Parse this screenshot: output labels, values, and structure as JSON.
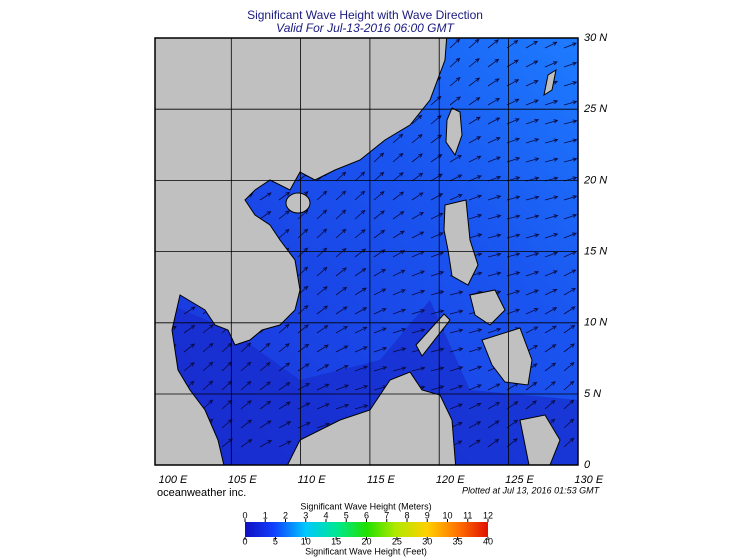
{
  "title": "Significant Wave Height with Wave Direction",
  "subtitle": "Valid For Jul-13-2016 06:00 GMT",
  "map": {
    "lon_labels": [
      "100 E",
      "105 E",
      "110 E",
      "115 E",
      "120 E",
      "125 E",
      "130 E"
    ],
    "lat_labels": [
      "30 N",
      "25 N",
      "20 N",
      "15 N",
      "10 N",
      "5 N",
      "0"
    ]
  },
  "credit": "oceanweather inc.",
  "plotted": "Plotted at Jul 13, 2016 01:53 GMT",
  "legend": {
    "meters_title": "Significant Wave Height (Meters)",
    "meters_ticks": [
      0,
      1,
      2,
      3,
      4,
      5,
      6,
      7,
      8,
      9,
      10,
      11,
      12
    ],
    "feet_ticks": [
      0,
      5,
      10,
      15,
      20,
      25,
      30,
      35,
      40
    ],
    "feet_title": "Significant Wave Height (Feet)"
  }
}
